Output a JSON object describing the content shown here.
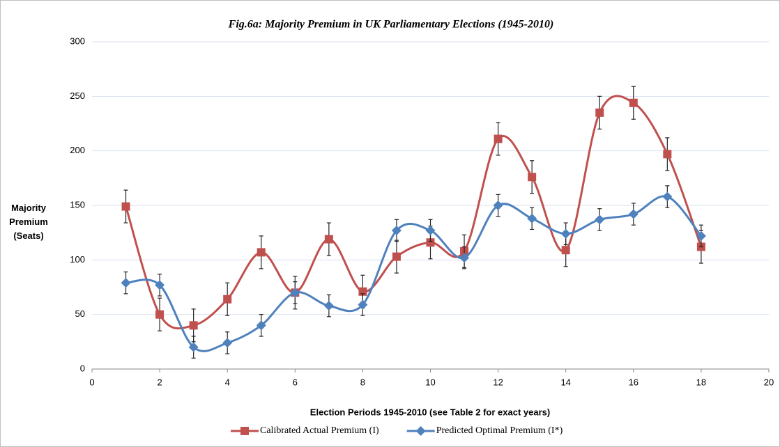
{
  "chart_data": {
    "type": "line",
    "title": "Fig.6a: Majority Premium in UK Parliamentary Elections (1945-2010)",
    "x_label": "Election Periods 1945-2010 (see Table 2 for exact years)",
    "y_label": "Majority Premium (Seats)",
    "x": [
      1,
      2,
      3,
      4,
      5,
      6,
      7,
      8,
      9,
      10,
      11,
      12,
      13,
      14,
      15,
      16,
      17,
      18
    ],
    "series": [
      {
        "name": "Calibrated Actual Premium (I)",
        "color": "#c0504d",
        "marker": "square",
        "values": [
          149,
          50,
          40,
          64,
          107,
          70,
          119,
          71,
          103,
          116,
          108,
          211,
          176,
          109,
          235,
          244,
          197,
          112
        ],
        "errors": [
          15,
          15,
          15,
          15,
          15,
          15,
          15,
          15,
          15,
          15,
          15,
          15,
          15,
          15,
          15,
          15,
          15,
          15
        ]
      },
      {
        "name": "Predicted Optimal Premium (I*)",
        "color": "#4f81bd",
        "marker": "diamond",
        "values": [
          79,
          77,
          20,
          24,
          40,
          70,
          58,
          59,
          127,
          127,
          102,
          150,
          138,
          124,
          137,
          142,
          158,
          122
        ],
        "errors": [
          10,
          10,
          10,
          10,
          10,
          10,
          10,
          10,
          10,
          10,
          10,
          10,
          10,
          10,
          10,
          10,
          10,
          10
        ]
      }
    ],
    "xlim": [
      0,
      20
    ],
    "xticks": [
      0,
      2,
      4,
      6,
      8,
      10,
      12,
      14,
      16,
      18,
      20
    ],
    "ylim": [
      0,
      300
    ],
    "yticks": [
      0,
      50,
      100,
      150,
      200,
      250,
      300
    ],
    "grid": true,
    "legend": "bottom",
    "smooth": true
  }
}
